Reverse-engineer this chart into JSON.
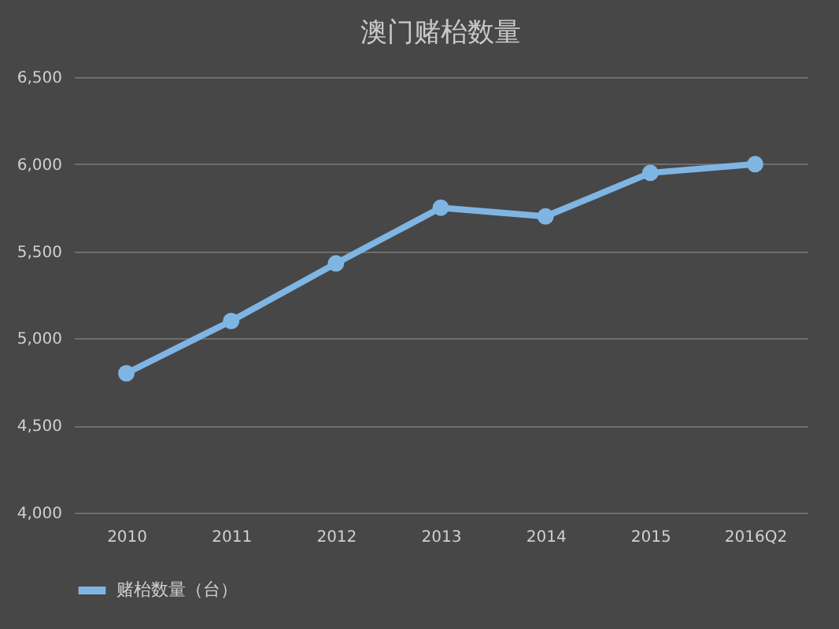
{
  "chart_data": {
    "type": "line",
    "title": "澳门赌枱数量",
    "categories": [
      "2010",
      "2011",
      "2012",
      "2013",
      "2014",
      "2015",
      "2016Q2"
    ],
    "series": [
      {
        "name": "赌枱数量（台）",
        "color": "#7fb5e3",
        "values": [
          4800,
          5100,
          5430,
          5750,
          5700,
          5950,
          6000
        ]
      }
    ],
    "ylim": [
      4000,
      6500
    ],
    "yticks": [
      {
        "value": 4000,
        "label": "4,000"
      },
      {
        "value": 4500,
        "label": "4,500"
      },
      {
        "value": 5000,
        "label": "5,000"
      },
      {
        "value": 5500,
        "label": "5,500"
      },
      {
        "value": 6000,
        "label": "6,000"
      },
      {
        "value": 6500,
        "label": "6,500"
      }
    ],
    "grid": "y",
    "legend": "bottom",
    "marker": "circle",
    "line_style": "solid"
  }
}
